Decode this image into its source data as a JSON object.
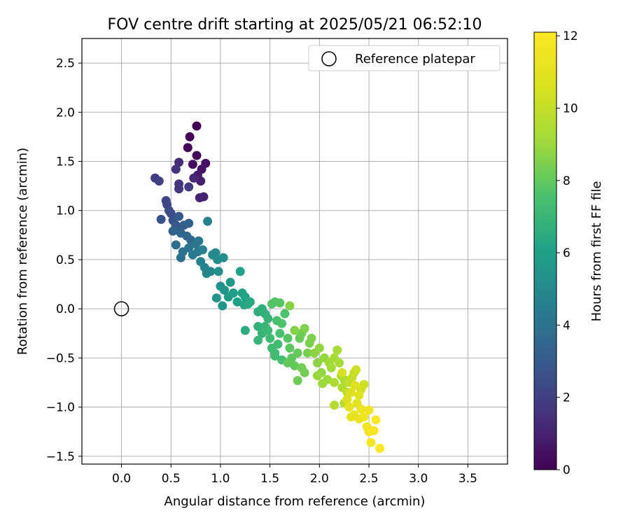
{
  "chart_data": {
    "type": "scatter",
    "title": "FOV centre drift starting at 2025/05/21 06:52:10",
    "xlabel": "Angular distance from reference (arcmin)",
    "ylabel": "Rotation from reference (arcmin)",
    "xlim": [
      -0.4,
      3.9
    ],
    "ylim": [
      -1.58,
      2.75
    ],
    "xticks": [
      "0.0",
      "0.5",
      "1.0",
      "1.5",
      "2.0",
      "2.5",
      "3.0",
      "3.5"
    ],
    "yticks": [
      "−1.5",
      "−1.0",
      "−0.5",
      "0.0",
      "0.5",
      "1.0",
      "1.5",
      "2.0",
      "2.5"
    ],
    "grid": true,
    "legend": {
      "placement": "top-right",
      "entries": [
        "Reference platepar"
      ]
    },
    "reference_point": {
      "x": 0.0,
      "y": 0.0,
      "label": "Reference platepar"
    },
    "colorbar": {
      "label": "Hours from first FF file",
      "range": [
        0,
        12.1
      ],
      "ticks": [
        "0",
        "2",
        "4",
        "6",
        "8",
        "10",
        "12"
      ],
      "colormap": "viridis"
    },
    "points": [
      {
        "x": 0.76,
        "y": 1.86,
        "c": 0.0
      },
      {
        "x": 0.69,
        "y": 1.75,
        "c": 0.1
      },
      {
        "x": 0.67,
        "y": 1.64,
        "c": 0.2
      },
      {
        "x": 0.76,
        "y": 1.56,
        "c": 0.3
      },
      {
        "x": 0.72,
        "y": 1.47,
        "c": 0.4
      },
      {
        "x": 0.85,
        "y": 1.48,
        "c": 0.5
      },
      {
        "x": 0.81,
        "y": 1.42,
        "c": 0.6
      },
      {
        "x": 0.77,
        "y": 1.36,
        "c": 0.8
      },
      {
        "x": 0.8,
        "y": 1.3,
        "c": 0.9
      },
      {
        "x": 0.83,
        "y": 1.14,
        "c": 1.0
      },
      {
        "x": 0.79,
        "y": 1.13,
        "c": 1.1
      },
      {
        "x": 0.73,
        "y": 1.33,
        "c": 1.2
      },
      {
        "x": 0.58,
        "y": 1.49,
        "c": 1.3
      },
      {
        "x": 0.55,
        "y": 1.42,
        "c": 1.5
      },
      {
        "x": 0.58,
        "y": 1.27,
        "c": 1.6
      },
      {
        "x": 0.58,
        "y": 1.22,
        "c": 1.7
      },
      {
        "x": 0.68,
        "y": 1.24,
        "c": 1.8
      },
      {
        "x": 0.34,
        "y": 1.33,
        "c": 1.9
      },
      {
        "x": 0.38,
        "y": 1.3,
        "c": 2.0
      },
      {
        "x": 0.45,
        "y": 1.1,
        "c": 2.2
      },
      {
        "x": 0.46,
        "y": 1.06,
        "c": 2.3
      },
      {
        "x": 0.48,
        "y": 1.0,
        "c": 2.4
      },
      {
        "x": 0.5,
        "y": 0.97,
        "c": 2.5
      },
      {
        "x": 0.52,
        "y": 0.9,
        "c": 2.6
      },
      {
        "x": 0.4,
        "y": 0.91,
        "c": 2.7
      },
      {
        "x": 0.55,
        "y": 0.85,
        "c": 2.8
      },
      {
        "x": 0.58,
        "y": 0.94,
        "c": 2.9
      },
      {
        "x": 0.57,
        "y": 0.8,
        "c": 3.0
      },
      {
        "x": 0.63,
        "y": 0.85,
        "c": 3.1
      },
      {
        "x": 0.68,
        "y": 0.87,
        "c": 3.2
      },
      {
        "x": 0.52,
        "y": 0.79,
        "c": 3.3
      },
      {
        "x": 0.6,
        "y": 0.77,
        "c": 3.4
      },
      {
        "x": 0.66,
        "y": 0.74,
        "c": 3.5
      },
      {
        "x": 0.7,
        "y": 0.7,
        "c": 3.6
      },
      {
        "x": 0.55,
        "y": 0.65,
        "c": 3.7
      },
      {
        "x": 0.62,
        "y": 0.58,
        "c": 3.8
      },
      {
        "x": 0.6,
        "y": 0.52,
        "c": 3.9
      },
      {
        "x": 0.68,
        "y": 0.62,
        "c": 4.0
      },
      {
        "x": 0.75,
        "y": 0.66,
        "c": 4.1
      },
      {
        "x": 0.78,
        "y": 0.69,
        "c": 4.2
      },
      {
        "x": 0.72,
        "y": 0.55,
        "c": 4.3
      },
      {
        "x": 0.77,
        "y": 0.58,
        "c": 4.4
      },
      {
        "x": 0.82,
        "y": 0.6,
        "c": 4.5
      },
      {
        "x": 0.8,
        "y": 0.48,
        "c": 4.6
      },
      {
        "x": 0.87,
        "y": 0.89,
        "c": 4.6
      },
      {
        "x": 0.84,
        "y": 0.42,
        "c": 4.7
      },
      {
        "x": 0.86,
        "y": 0.36,
        "c": 4.8
      },
      {
        "x": 0.9,
        "y": 0.38,
        "c": 4.9
      },
      {
        "x": 0.92,
        "y": 0.55,
        "c": 5.0
      },
      {
        "x": 0.95,
        "y": 0.57,
        "c": 5.0
      },
      {
        "x": 0.97,
        "y": 0.5,
        "c": 5.1
      },
      {
        "x": 1.03,
        "y": 0.52,
        "c": 5.2
      },
      {
        "x": 0.98,
        "y": 0.38,
        "c": 5.3
      },
      {
        "x": 1.0,
        "y": 0.23,
        "c": 5.4
      },
      {
        "x": 1.04,
        "y": 0.19,
        "c": 5.5
      },
      {
        "x": 0.96,
        "y": 0.11,
        "c": 5.5
      },
      {
        "x": 1.02,
        "y": 0.03,
        "c": 5.6
      },
      {
        "x": 1.1,
        "y": 0.27,
        "c": 5.7
      },
      {
        "x": 1.08,
        "y": 0.12,
        "c": 5.8
      },
      {
        "x": 1.13,
        "y": 0.16,
        "c": 5.9
      },
      {
        "x": 1.17,
        "y": 0.07,
        "c": 6.0
      },
      {
        "x": 1.22,
        "y": 0.16,
        "c": 6.1
      },
      {
        "x": 1.2,
        "y": 0.38,
        "c": 6.1
      },
      {
        "x": 1.25,
        "y": 0.12,
        "c": 6.2
      },
      {
        "x": 1.24,
        "y": 0.04,
        "c": 6.3
      },
      {
        "x": 1.28,
        "y": 0.05,
        "c": 6.4
      },
      {
        "x": 1.3,
        "y": 0.07,
        "c": 6.4
      },
      {
        "x": 1.25,
        "y": -0.22,
        "c": 6.5
      },
      {
        "x": 1.38,
        "y": -0.03,
        "c": 6.6
      },
      {
        "x": 1.42,
        "y": 0.0,
        "c": 6.7
      },
      {
        "x": 1.45,
        "y": -0.05,
        "c": 6.7
      },
      {
        "x": 1.38,
        "y": -0.18,
        "c": 6.8
      },
      {
        "x": 1.42,
        "y": -0.25,
        "c": 6.9
      },
      {
        "x": 1.45,
        "y": -0.18,
        "c": 7.0
      },
      {
        "x": 1.38,
        "y": -0.32,
        "c": 7.0
      },
      {
        "x": 1.48,
        "y": -0.22,
        "c": 7.1
      },
      {
        "x": 1.5,
        "y": -0.3,
        "c": 7.2
      },
      {
        "x": 1.52,
        "y": -0.4,
        "c": 7.2
      },
      {
        "x": 1.55,
        "y": -0.45,
        "c": 7.3
      },
      {
        "x": 1.58,
        "y": -0.36,
        "c": 7.3
      },
      {
        "x": 1.62,
        "y": -0.52,
        "c": 7.4
      },
      {
        "x": 1.6,
        "y": -0.25,
        "c": 7.5
      },
      {
        "x": 1.57,
        "y": -0.12,
        "c": 7.5
      },
      {
        "x": 1.62,
        "y": -0.15,
        "c": 7.6
      },
      {
        "x": 1.65,
        "y": -0.05,
        "c": 7.6
      },
      {
        "x": 1.52,
        "y": 0.05,
        "c": 7.7
      },
      {
        "x": 1.55,
        "y": 0.07,
        "c": 7.7
      },
      {
        "x": 1.6,
        "y": 0.06,
        "c": 7.8
      },
      {
        "x": 1.68,
        "y": -0.3,
        "c": 7.8
      },
      {
        "x": 1.7,
        "y": -0.4,
        "c": 7.9
      },
      {
        "x": 1.72,
        "y": -0.5,
        "c": 7.9
      },
      {
        "x": 1.68,
        "y": -0.55,
        "c": 8.0
      },
      {
        "x": 1.75,
        "y": -0.58,
        "c": 8.0
      },
      {
        "x": 1.78,
        "y": -0.45,
        "c": 8.1
      },
      {
        "x": 1.8,
        "y": -0.3,
        "c": 8.1
      },
      {
        "x": 1.82,
        "y": -0.25,
        "c": 8.2
      },
      {
        "x": 1.78,
        "y": -0.73,
        "c": 8.2
      },
      {
        "x": 1.85,
        "y": -0.65,
        "c": 8.3
      },
      {
        "x": 1.82,
        "y": -0.6,
        "c": 8.3
      },
      {
        "x": 1.88,
        "y": -0.45,
        "c": 8.4
      },
      {
        "x": 1.9,
        "y": -0.35,
        "c": 8.4
      },
      {
        "x": 1.85,
        "y": -0.2,
        "c": 8.5
      },
      {
        "x": 1.92,
        "y": -0.3,
        "c": 8.5
      },
      {
        "x": 1.75,
        "y": -0.22,
        "c": 8.6
      },
      {
        "x": 1.7,
        "y": 0.03,
        "c": 8.6
      },
      {
        "x": 1.95,
        "y": -0.45,
        "c": 8.7
      },
      {
        "x": 1.98,
        "y": -0.55,
        "c": 8.7
      },
      {
        "x": 2.0,
        "y": -0.4,
        "c": 8.8
      },
      {
        "x": 2.02,
        "y": -0.65,
        "c": 8.8
      },
      {
        "x": 1.98,
        "y": -0.68,
        "c": 8.9
      },
      {
        "x": 2.05,
        "y": -0.5,
        "c": 8.9
      },
      {
        "x": 2.03,
        "y": -0.76,
        "c": 9.0
      },
      {
        "x": 2.08,
        "y": -0.72,
        "c": 9.0
      },
      {
        "x": 2.1,
        "y": -0.55,
        "c": 9.1
      },
      {
        "x": 2.12,
        "y": -0.6,
        "c": 9.1
      },
      {
        "x": 2.15,
        "y": -0.5,
        "c": 9.2
      },
      {
        "x": 2.18,
        "y": -0.42,
        "c": 9.3
      },
      {
        "x": 2.2,
        "y": -0.55,
        "c": 9.3
      },
      {
        "x": 2.22,
        "y": -0.68,
        "c": 9.4
      },
      {
        "x": 2.15,
        "y": -0.75,
        "c": 9.4
      },
      {
        "x": 2.25,
        "y": -0.72,
        "c": 9.5
      },
      {
        "x": 2.23,
        "y": -0.8,
        "c": 9.6
      },
      {
        "x": 2.15,
        "y": -0.98,
        "c": 9.6
      },
      {
        "x": 2.25,
        "y": -0.96,
        "c": 9.7
      },
      {
        "x": 2.28,
        "y": -0.85,
        "c": 9.8
      },
      {
        "x": 2.3,
        "y": -0.75,
        "c": 9.9
      },
      {
        "x": 2.33,
        "y": -0.7,
        "c": 10.0
      },
      {
        "x": 2.35,
        "y": -0.65,
        "c": 10.1
      },
      {
        "x": 2.37,
        "y": -0.62,
        "c": 10.2
      },
      {
        "x": 2.45,
        "y": -0.77,
        "c": 10.3
      },
      {
        "x": 2.42,
        "y": -0.82,
        "c": 10.4
      },
      {
        "x": 2.23,
        "y": -0.65,
        "c": 10.5
      },
      {
        "x": 2.28,
        "y": -0.92,
        "c": 10.6
      },
      {
        "x": 2.32,
        "y": -0.85,
        "c": 10.7
      },
      {
        "x": 2.36,
        "y": -0.78,
        "c": 10.8
      },
      {
        "x": 2.4,
        "y": -0.88,
        "c": 10.9
      },
      {
        "x": 2.38,
        "y": -0.96,
        "c": 11.0
      },
      {
        "x": 2.3,
        "y": -1.0,
        "c": 11.1
      },
      {
        "x": 2.35,
        "y": -1.08,
        "c": 11.2
      },
      {
        "x": 2.42,
        "y": -1.02,
        "c": 11.3
      },
      {
        "x": 2.4,
        "y": -1.12,
        "c": 11.4
      },
      {
        "x": 2.45,
        "y": -1.1,
        "c": 11.5
      },
      {
        "x": 2.48,
        "y": -1.2,
        "c": 11.6
      },
      {
        "x": 2.5,
        "y": -1.25,
        "c": 11.7
      },
      {
        "x": 2.52,
        "y": -1.36,
        "c": 11.8
      },
      {
        "x": 2.55,
        "y": -1.24,
        "c": 11.9
      },
      {
        "x": 2.57,
        "y": -1.13,
        "c": 12.0
      },
      {
        "x": 2.61,
        "y": -1.42,
        "c": 12.1
      },
      {
        "x": 2.5,
        "y": -1.03,
        "c": 11.5
      },
      {
        "x": 2.32,
        "y": -1.1,
        "c": 11.2
      },
      {
        "x": 1.55,
        "y": -0.48,
        "c": 7.3
      },
      {
        "x": 1.48,
        "y": -0.1,
        "c": 6.9
      }
    ]
  }
}
